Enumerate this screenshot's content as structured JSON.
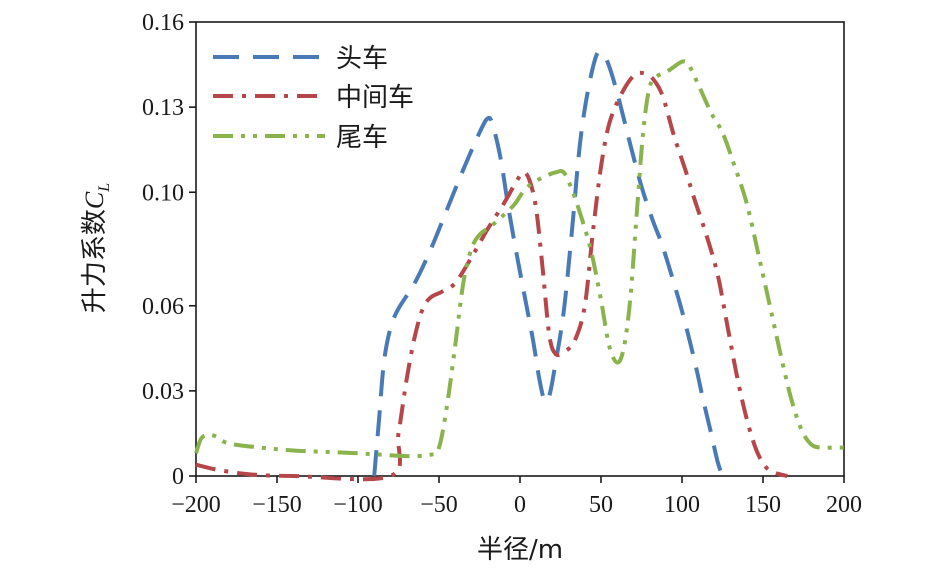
{
  "chart_data": {
    "type": "line",
    "title": "",
    "xlabel": "半径/m",
    "ylabel": "升力系数",
    "ylabel_symbol": "C",
    "ylabel_subscript": "L",
    "xlim": [
      -200,
      200
    ],
    "ylim": [
      0,
      0.16
    ],
    "xticks": [
      -200,
      -150,
      -100,
      -50,
      0,
      50,
      100,
      150,
      200
    ],
    "xtick_labels": [
      "−200",
      "−150",
      "−100",
      "−50",
      "0",
      "50",
      "100",
      "150",
      "200"
    ],
    "yticks": [
      0,
      0.03,
      0.06,
      0.1,
      0.13,
      0.16
    ],
    "ytick_labels": [
      "0",
      "0.03",
      "0.06",
      "0.10",
      "0.13",
      "0.16"
    ],
    "grid": false,
    "legend_position": "top-left",
    "series": [
      {
        "name": "头车",
        "color": "#4a7ab5",
        "dash": "dashed",
        "points": [
          [
            -90,
            0
          ],
          [
            -87,
            0.02
          ],
          [
            -84,
            0.04
          ],
          [
            -80,
            0.052
          ],
          [
            -75,
            0.059
          ],
          [
            -65,
            0.068
          ],
          [
            -55,
            0.08
          ],
          [
            -45,
            0.094
          ],
          [
            -35,
            0.108
          ],
          [
            -25,
            0.121
          ],
          [
            -20,
            0.126
          ],
          [
            -17,
            0.124
          ],
          [
            -12,
            0.112
          ],
          [
            -7,
            0.094
          ],
          [
            -2,
            0.078
          ],
          [
            3,
            0.063
          ],
          [
            8,
            0.048
          ],
          [
            12,
            0.034
          ],
          [
            15,
            0.027
          ],
          [
            18,
            0.028
          ],
          [
            22,
            0.04
          ],
          [
            27,
            0.058
          ],
          [
            32,
            0.086
          ],
          [
            37,
            0.117
          ],
          [
            42,
            0.136
          ],
          [
            47,
            0.148
          ],
          [
            50,
            0.149
          ],
          [
            54,
            0.146
          ],
          [
            60,
            0.135
          ],
          [
            68,
            0.117
          ],
          [
            75,
            0.102
          ],
          [
            82,
            0.09
          ],
          [
            88,
            0.081
          ],
          [
            95,
            0.068
          ],
          [
            101,
            0.056
          ],
          [
            108,
            0.04
          ],
          [
            113,
            0.027
          ],
          [
            118,
            0.015
          ],
          [
            122,
            0.005
          ],
          [
            125,
            0
          ]
        ]
      },
      {
        "name": "中间车",
        "color": "#b5474b",
        "dash": "dash-dot",
        "points": [
          [
            -200,
            0.004
          ],
          [
            -185,
            0.002
          ],
          [
            -165,
            0.0005
          ],
          [
            -140,
            0
          ],
          [
            -80,
            0
          ],
          [
            -75,
            0.015
          ],
          [
            -70,
            0.034
          ],
          [
            -65,
            0.049
          ],
          [
            -60,
            0.059
          ],
          [
            -55,
            0.063
          ],
          [
            -48,
            0.065
          ],
          [
            -40,
            0.068
          ],
          [
            -30,
            0.077
          ],
          [
            -20,
            0.087
          ],
          [
            -10,
            0.096
          ],
          [
            -3,
            0.103
          ],
          [
            2,
            0.107
          ],
          [
            6,
            0.104
          ],
          [
            10,
            0.094
          ],
          [
            14,
            0.073
          ],
          [
            18,
            0.05
          ],
          [
            22,
            0.043
          ],
          [
            28,
            0.044
          ],
          [
            34,
            0.048
          ],
          [
            40,
            0.06
          ],
          [
            45,
            0.086
          ],
          [
            50,
            0.109
          ],
          [
            55,
            0.124
          ],
          [
            62,
            0.134
          ],
          [
            70,
            0.141
          ],
          [
            76,
            0.142
          ],
          [
            82,
            0.14
          ],
          [
            88,
            0.134
          ],
          [
            95,
            0.12
          ],
          [
            102,
            0.108
          ],
          [
            108,
            0.097
          ],
          [
            115,
            0.085
          ],
          [
            122,
            0.071
          ],
          [
            128,
            0.053
          ],
          [
            134,
            0.035
          ],
          [
            140,
            0.02
          ],
          [
            146,
            0.009
          ],
          [
            152,
            0.003
          ],
          [
            158,
            0.001
          ],
          [
            165,
            0
          ]
        ]
      },
      {
        "name": "尾车",
        "color": "#8ab34d",
        "dash": "dash-dot-dot",
        "points": [
          [
            -200,
            0.008
          ],
          [
            -197,
            0.013
          ],
          [
            -193,
            0.0145
          ],
          [
            -188,
            0.014
          ],
          [
            -180,
            0.0115
          ],
          [
            -160,
            0.01
          ],
          [
            -140,
            0.009
          ],
          [
            -120,
            0.0085
          ],
          [
            -100,
            0.008
          ],
          [
            -85,
            0.0075
          ],
          [
            -70,
            0.007
          ],
          [
            -55,
            0.0075
          ],
          [
            -50,
            0.01
          ],
          [
            -45,
            0.025
          ],
          [
            -40,
            0.046
          ],
          [
            -35,
            0.068
          ],
          [
            -30,
            0.08
          ],
          [
            -25,
            0.085
          ],
          [
            -18,
            0.088
          ],
          [
            -10,
            0.092
          ],
          [
            -3,
            0.096
          ],
          [
            3,
            0.101
          ],
          [
            10,
            0.104
          ],
          [
            17,
            0.106
          ],
          [
            22,
            0.107
          ],
          [
            27,
            0.107
          ],
          [
            32,
            0.101
          ],
          [
            38,
            0.091
          ],
          [
            44,
            0.079
          ],
          [
            50,
            0.062
          ],
          [
            55,
            0.046
          ],
          [
            60,
            0.04
          ],
          [
            64,
            0.045
          ],
          [
            68,
            0.062
          ],
          [
            72,
            0.092
          ],
          [
            76,
            0.121
          ],
          [
            80,
            0.137
          ],
          [
            85,
            0.141
          ],
          [
            92,
            0.143
          ],
          [
            100,
            0.146
          ],
          [
            104,
            0.145
          ],
          [
            110,
            0.138
          ],
          [
            118,
            0.128
          ],
          [
            125,
            0.121
          ],
          [
            132,
            0.11
          ],
          [
            140,
            0.096
          ],
          [
            148,
            0.076
          ],
          [
            155,
            0.058
          ],
          [
            162,
            0.04
          ],
          [
            168,
            0.026
          ],
          [
            174,
            0.016
          ],
          [
            180,
            0.011
          ],
          [
            186,
            0.01
          ],
          [
            193,
            0.01
          ],
          [
            200,
            0.01
          ]
        ]
      }
    ]
  }
}
